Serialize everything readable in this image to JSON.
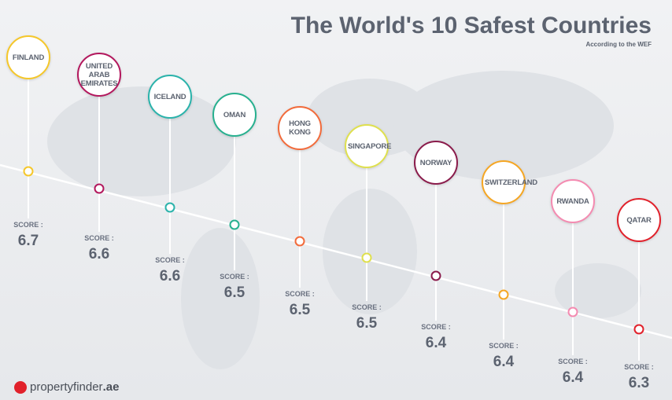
{
  "header": {
    "title": "The World's 10 Safest Countries",
    "subtitle": "According to the WEF"
  },
  "score_label": "SCORE :",
  "countries": [
    {
      "name": "FINLAND",
      "score": 6.7,
      "color": "#f5c72a"
    },
    {
      "name": "UNITED ARAB EMIRATES",
      "score": 6.6,
      "color": "#b3175d"
    },
    {
      "name": "ICELAND",
      "score": 6.6,
      "color": "#2ab3ab"
    },
    {
      "name": "OMAN",
      "score": 6.5,
      "color": "#27b08f"
    },
    {
      "name": "HONG KONG",
      "score": 6.5,
      "color": "#f26b3b"
    },
    {
      "name": "SINGAPORE",
      "score": 6.5,
      "color": "#dfe04e"
    },
    {
      "name": "NORWAY",
      "score": 6.4,
      "color": "#8a1b4b"
    },
    {
      "name": "SWITZERLAND",
      "score": 6.4,
      "color": "#f5a623"
    },
    {
      "name": "RWANDA",
      "score": 6.4,
      "color": "#f48bb1"
    },
    {
      "name": "QATAR",
      "score": 6.3,
      "color": "#e1212b"
    }
  ],
  "logo": {
    "brand": "propertyfinder",
    "domain": ".ae"
  }
}
